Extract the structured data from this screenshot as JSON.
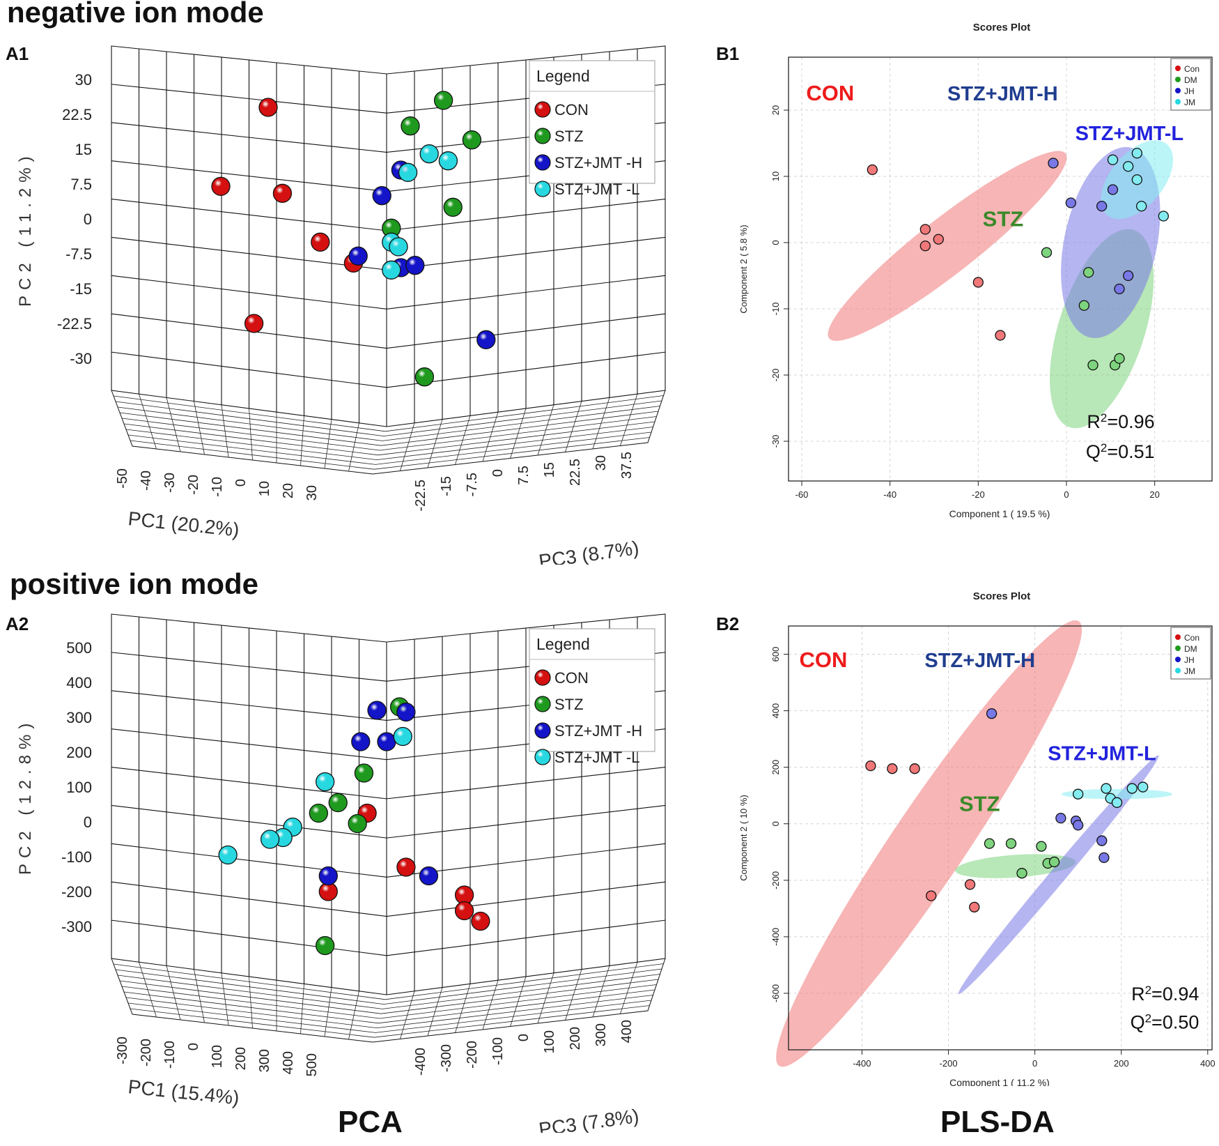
{
  "headings": {
    "negative": "negative ion mode",
    "positive": "positive ion mode",
    "pca": "PCA",
    "plsda": "PLS-DA"
  },
  "colors": {
    "red": "#d41010",
    "green": "#1f9a1f",
    "blue": "#1414c8",
    "cyan": "#28d8e0",
    "pls_con": "#f07878",
    "pls_dm": "#7ed47e",
    "pls_jh": "#7878e6",
    "pls_jm": "#84ecf0"
  },
  "chart_data": [
    {
      "id": "A1",
      "panel": "A1",
      "type": "scatter",
      "subtype": "pca-3d",
      "legend": {
        "title": "Legend",
        "entries": [
          "CON",
          "STZ",
          "STZ+JMT -H",
          "STZ+JMT -L"
        ]
      },
      "pc1_label": "PC1 (20.2%)",
      "pc2_label": "PC2 (11.2%)",
      "pc3_label": "PC3 (8.7%)",
      "pc2_ticks": [
        "30",
        "22.5",
        "15",
        "7.5",
        "0",
        "-7.5",
        "-15",
        "-22.5",
        "-30"
      ],
      "pc1_ticks": [
        "-50",
        "-40",
        "-30",
        "-20",
        "-10",
        "0",
        "10",
        "20",
        "30"
      ],
      "pc3_ticks": [
        "-22.5",
        "-15",
        "-7.5",
        "0",
        "7.5",
        "15",
        "22.5",
        "30",
        "37.5"
      ],
      "pc2_range": [
        30,
        -30
      ],
      "points": [
        {
          "g": 0,
          "h": -25,
          "v": 24
        },
        {
          "g": 0,
          "h": -35,
          "v": 7
        },
        {
          "g": 0,
          "h": -22,
          "v": 5.5
        },
        {
          "g": 0,
          "h": -14,
          "v": -5
        },
        {
          "g": 0,
          "h": -7,
          "v": -9.5
        },
        {
          "g": 0,
          "h": -28,
          "v": -22.5
        },
        {
          "g": 1,
          "h": 12,
          "v": 25.5
        },
        {
          "g": 1,
          "h": 5,
          "v": 20
        },
        {
          "g": 1,
          "h": 18,
          "v": 17
        },
        {
          "g": 1,
          "h": 14,
          "v": 2.5
        },
        {
          "g": 1,
          "h": 1,
          "v": -2
        },
        {
          "g": 1,
          "h": 8,
          "v": -34
        },
        {
          "g": 2,
          "h": 3,
          "v": 10.5
        },
        {
          "g": 2,
          "h": -1,
          "v": 5
        },
        {
          "g": 2,
          "h": -6,
          "v": -8
        },
        {
          "g": 2,
          "h": 3,
          "v": -10.5
        },
        {
          "g": 2,
          "h": 6,
          "v": -10
        },
        {
          "g": 2,
          "h": 21,
          "v": -26
        },
        {
          "g": 3,
          "h": 4.5,
          "v": 10
        },
        {
          "g": 3,
          "h": 9,
          "v": 14
        },
        {
          "g": 3,
          "h": 13,
          "v": 12.5
        },
        {
          "g": 3,
          "h": 1,
          "v": -5
        },
        {
          "g": 3,
          "h": 2.5,
          "v": -6
        },
        {
          "g": 3,
          "h": 1,
          "v": -11
        }
      ]
    },
    {
      "id": "A2",
      "panel": "A2",
      "type": "scatter",
      "subtype": "pca-3d",
      "legend": {
        "title": "Legend",
        "entries": [
          "CON",
          "STZ",
          "STZ+JMT -H",
          "STZ+JMT -L"
        ]
      },
      "pc1_label": "PC1 (15.4%)",
      "pc2_label": "PC2 (12.8%)",
      "pc3_label": "PC3 (7.8%)",
      "pc2_ticks": [
        "500",
        "400",
        "300",
        "200",
        "100",
        "0",
        "-100",
        "-200",
        "-300"
      ],
      "pc1_ticks": [
        "-300",
        "-200",
        "-100",
        "0",
        "100",
        "200",
        "300",
        "400",
        "500"
      ],
      "pc3_ticks": [
        "-400",
        "-300",
        "-200",
        "-100",
        "0",
        "100",
        "200",
        "300",
        "400"
      ],
      "pc2_range": [
        500,
        -300
      ],
      "points": [
        {
          "g": 0,
          "h": -30,
          "v": 25
        },
        {
          "g": 0,
          "h": -90,
          "v": -200
        },
        {
          "g": 0,
          "h": 30,
          "v": -130
        },
        {
          "g": 0,
          "h": 120,
          "v": -210
        },
        {
          "g": 0,
          "h": 120,
          "v": -255
        },
        {
          "g": 0,
          "h": 145,
          "v": -285
        },
        {
          "g": 1,
          "h": 20,
          "v": 330
        },
        {
          "g": 1,
          "h": -35,
          "v": 140
        },
        {
          "g": 1,
          "h": -75,
          "v": 55
        },
        {
          "g": 1,
          "h": -105,
          "v": 25
        },
        {
          "g": 1,
          "h": -45,
          "v": -5
        },
        {
          "g": 1,
          "h": -95,
          "v": -355
        },
        {
          "g": 2,
          "h": -15,
          "v": 320
        },
        {
          "g": 2,
          "h": 30,
          "v": 315
        },
        {
          "g": 2,
          "h": -40,
          "v": 230
        },
        {
          "g": 2,
          "h": 0,
          "v": 230
        },
        {
          "g": 2,
          "h": -90,
          "v": -155
        },
        {
          "g": 2,
          "h": 65,
          "v": -155
        },
        {
          "g": 3,
          "h": 25,
          "v": 245
        },
        {
          "g": 3,
          "h": -95,
          "v": 115
        },
        {
          "g": 3,
          "h": -145,
          "v": -15
        },
        {
          "g": 3,
          "h": -160,
          "v": -45
        },
        {
          "g": 3,
          "h": -180,
          "v": -50
        },
        {
          "g": 3,
          "h": -245,
          "v": -95
        }
      ]
    },
    {
      "id": "B1",
      "panel": "B1",
      "type": "scatter",
      "subtype": "pls-da",
      "title": "Scores Plot",
      "xlabel": "Component 1 ( 19.5 %)",
      "ylabel": "Component 2 ( 5.8 %)",
      "xlim": [
        -63,
        33
      ],
      "ylim": [
        -36,
        28
      ],
      "xticks": [
        -60,
        -40,
        -20,
        0,
        20
      ],
      "yticks": [
        -30,
        -20,
        -10,
        0,
        10,
        20
      ],
      "legend": [
        "Con",
        "DM",
        "JH",
        "JM"
      ],
      "group_labels": [
        "CON",
        "STZ+JMT-H",
        "STZ+JMT-L",
        "STZ"
      ],
      "r2": "=0.96",
      "q2": "=0.51",
      "ellipses": [
        {
          "g": 0,
          "cx": -27,
          "cy": -0.5,
          "rx": 34,
          "ry": 4.2,
          "angle": -38
        },
        {
          "g": 1,
          "cx": 8,
          "cy": -13,
          "rx": 23.5,
          "ry": 6.5,
          "angle": -72
        },
        {
          "g": 2,
          "cx": 10,
          "cy": 0,
          "rx": 22,
          "ry": 7,
          "angle": -78
        },
        {
          "g": 3,
          "cx": 16,
          "cy": 9.5,
          "rx": 10.5,
          "ry": 4,
          "angle": -50
        }
      ],
      "points": [
        {
          "g": 0,
          "x": -44,
          "y": 11
        },
        {
          "g": 0,
          "x": -32,
          "y": 2
        },
        {
          "g": 0,
          "x": -29,
          "y": 0.5
        },
        {
          "g": 0,
          "x": -32,
          "y": -0.5
        },
        {
          "g": 0,
          "x": -20,
          "y": -6
        },
        {
          "g": 0,
          "x": -15,
          "y": -14
        },
        {
          "g": 1,
          "x": -4.5,
          "y": -1.5
        },
        {
          "g": 1,
          "x": 5,
          "y": -4.5
        },
        {
          "g": 1,
          "x": 4,
          "y": -9.5
        },
        {
          "g": 1,
          "x": 6,
          "y": -18.5
        },
        {
          "g": 1,
          "x": 11,
          "y": -18.5
        },
        {
          "g": 1,
          "x": 12,
          "y": -17.5
        },
        {
          "g": 2,
          "x": -3,
          "y": 12
        },
        {
          "g": 2,
          "x": 1,
          "y": 6
        },
        {
          "g": 2,
          "x": 8,
          "y": 5.5
        },
        {
          "g": 2,
          "x": 10.5,
          "y": 8
        },
        {
          "g": 2,
          "x": 14,
          "y": -5
        },
        {
          "g": 2,
          "x": 12,
          "y": -7
        },
        {
          "g": 3,
          "x": 10.5,
          "y": 12.5
        },
        {
          "g": 3,
          "x": 14,
          "y": 11.5
        },
        {
          "g": 3,
          "x": 16,
          "y": 13.5
        },
        {
          "g": 3,
          "x": 16,
          "y": 9.5
        },
        {
          "g": 3,
          "x": 17,
          "y": 5.5
        },
        {
          "g": 3,
          "x": 22,
          "y": 4
        }
      ],
      "annot": {
        "con": {
          "x": -59,
          "y": 21.5
        },
        "jh": {
          "x": -27,
          "y": 21.5
        },
        "jl": {
          "x": 2,
          "y": 15.5
        },
        "stz": {
          "x": -19,
          "y": 2.5
        },
        "r2": {
          "x": 20,
          "y": -28
        },
        "q2": {
          "x": 20,
          "y": -32.5
        }
      }
    },
    {
      "id": "B2",
      "panel": "B2",
      "type": "scatter",
      "subtype": "pls-da",
      "title": "Scores Plot",
      "xlabel": "Component 1 ( 11.2 %)",
      "ylabel": "Component 2 ( 10 %)",
      "xlim": [
        -570,
        410
      ],
      "ylim": [
        -800,
        700
      ],
      "xticks": [
        -400,
        -200,
        0,
        200,
        400
      ],
      "yticks": [
        -600,
        -400,
        -200,
        0,
        200,
        400,
        600
      ],
      "legend": [
        "Con",
        "DM",
        "JH",
        "JM"
      ],
      "group_labels": [
        "CON",
        "STZ+JMT-H",
        "STZ+JMT-L",
        "STZ"
      ],
      "r2": "=0.94",
      "q2": "=0.50",
      "ellipses": [
        {
          "g": 0,
          "cx": -245,
          "cy": -70,
          "rx": 620,
          "ry": 130,
          "angle": -56
        },
        {
          "g": 1,
          "cx": -45,
          "cy": -150,
          "rx": 140,
          "ry": 40,
          "angle": -4
        },
        {
          "g": 2,
          "cx": 55,
          "cy": -180,
          "rx": 360,
          "ry": 28,
          "angle": -50
        },
        {
          "g": 3,
          "cx": 190,
          "cy": 105,
          "rx": 128,
          "ry": 18,
          "angle": 0
        }
      ],
      "points": [
        {
          "g": 0,
          "x": -380,
          "y": 205
        },
        {
          "g": 0,
          "x": -330,
          "y": 195
        },
        {
          "g": 0,
          "x": -278,
          "y": 195
        },
        {
          "g": 0,
          "x": -240,
          "y": -255
        },
        {
          "g": 0,
          "x": -150,
          "y": -215
        },
        {
          "g": 0,
          "x": -140,
          "y": -295
        },
        {
          "g": 1,
          "x": -105,
          "y": -70
        },
        {
          "g": 1,
          "x": -55,
          "y": -70
        },
        {
          "g": 1,
          "x": -30,
          "y": -175
        },
        {
          "g": 1,
          "x": 15,
          "y": -80
        },
        {
          "g": 1,
          "x": 30,
          "y": -140
        },
        {
          "g": 1,
          "x": 45,
          "y": -135
        },
        {
          "g": 2,
          "x": -100,
          "y": 390
        },
        {
          "g": 2,
          "x": 60,
          "y": 20
        },
        {
          "g": 2,
          "x": 95,
          "y": 10
        },
        {
          "g": 2,
          "x": 100,
          "y": -5
        },
        {
          "g": 2,
          "x": 155,
          "y": -60
        },
        {
          "g": 2,
          "x": 160,
          "y": -120
        },
        {
          "g": 3,
          "x": 100,
          "y": 105
        },
        {
          "g": 3,
          "x": 165,
          "y": 125
        },
        {
          "g": 3,
          "x": 175,
          "y": 90
        },
        {
          "g": 3,
          "x": 190,
          "y": 75
        },
        {
          "g": 3,
          "x": 225,
          "y": 125
        },
        {
          "g": 3,
          "x": 250,
          "y": 130
        }
      ],
      "annot": {
        "con": {
          "x": -545,
          "y": 555
        },
        "jh": {
          "x": -255,
          "y": 555
        },
        "jl": {
          "x": 30,
          "y": 225
        },
        "stz": {
          "x": -175,
          "y": 45
        },
        "r2": {
          "x": 380,
          "y": -625
        },
        "q2": {
          "x": 380,
          "y": -725
        }
      }
    }
  ]
}
